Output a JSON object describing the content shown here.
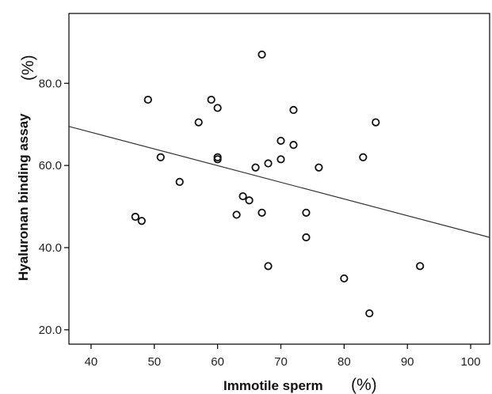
{
  "chart_data": {
    "type": "scatter",
    "title": "",
    "xlabel": "Immotile sperm",
    "xlabel_unit": "(%)",
    "ylabel": "Hyaluronan binding assay",
    "ylabel_unit": "(%)",
    "xlim": [
      36.5,
      103
    ],
    "ylim": [
      16.5,
      97
    ],
    "xticks": [
      40,
      50,
      60,
      70,
      80,
      90,
      100
    ],
    "xtick_labels": [
      "40",
      "50",
      "60",
      "70",
      "80",
      "90",
      "100"
    ],
    "yticks": [
      20,
      40,
      60,
      80
    ],
    "ytick_labels": [
      "20.0",
      "40.0",
      "60.0",
      "80.0"
    ],
    "grid": false,
    "legend": "none",
    "points": [
      {
        "x": 47,
        "y": 47.5
      },
      {
        "x": 48,
        "y": 46.5
      },
      {
        "x": 49,
        "y": 76
      },
      {
        "x": 51,
        "y": 62
      },
      {
        "x": 54,
        "y": 56
      },
      {
        "x": 57,
        "y": 70.5
      },
      {
        "x": 59,
        "y": 76
      },
      {
        "x": 60,
        "y": 74
      },
      {
        "x": 60,
        "y": 62
      },
      {
        "x": 60,
        "y": 61.5
      },
      {
        "x": 63,
        "y": 48
      },
      {
        "x": 64,
        "y": 52.5
      },
      {
        "x": 65,
        "y": 51.5
      },
      {
        "x": 66,
        "y": 59.5
      },
      {
        "x": 67,
        "y": 87
      },
      {
        "x": 67,
        "y": 48.5
      },
      {
        "x": 68,
        "y": 60.5
      },
      {
        "x": 68,
        "y": 35.5
      },
      {
        "x": 70,
        "y": 66
      },
      {
        "x": 70,
        "y": 61.5
      },
      {
        "x": 72,
        "y": 73.5
      },
      {
        "x": 72,
        "y": 65
      },
      {
        "x": 74,
        "y": 48.5
      },
      {
        "x": 74,
        "y": 42.5
      },
      {
        "x": 76,
        "y": 59.5
      },
      {
        "x": 80,
        "y": 32.5
      },
      {
        "x": 83,
        "y": 62
      },
      {
        "x": 84,
        "y": 24
      },
      {
        "x": 85,
        "y": 70.5
      },
      {
        "x": 92,
        "y": 35.5
      }
    ],
    "fit_line": [
      {
        "x": 36.5,
        "y": 69.5
      },
      {
        "x": 103,
        "y": 42.5
      }
    ],
    "colors": {
      "marker": "#111111",
      "line": "#333333",
      "axis": "#000000"
    }
  }
}
